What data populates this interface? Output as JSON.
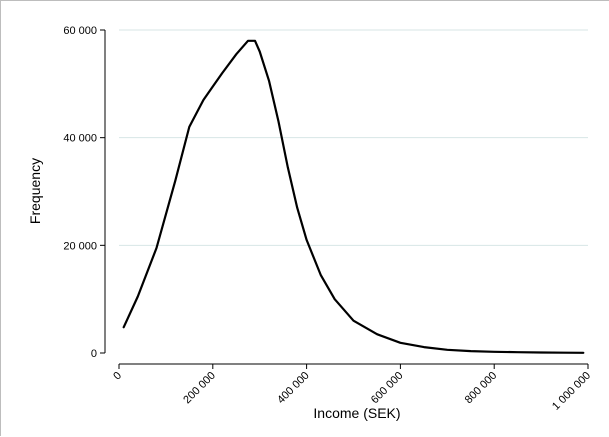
{
  "chart_data": {
    "type": "line",
    "title": "",
    "xlabel": "Income (SEK)",
    "ylabel": "Frequency",
    "xlim": [
      0,
      1000000
    ],
    "ylim": [
      0,
      60000
    ],
    "x_ticks": [
      {
        "value": 0,
        "label": "0"
      },
      {
        "value": 200000,
        "label": "200 000"
      },
      {
        "value": 400000,
        "label": "400 000"
      },
      {
        "value": 600000,
        "label": "600 000"
      },
      {
        "value": 800000,
        "label": "800 000"
      },
      {
        "value": 1000000,
        "label": "1 000 000"
      }
    ],
    "y_ticks": [
      {
        "value": 0,
        "label": "0"
      },
      {
        "value": 20000,
        "label": "20 000"
      },
      {
        "value": 40000,
        "label": "40 000"
      },
      {
        "value": 60000,
        "label": "60 000"
      }
    ],
    "grid": true,
    "colors": {
      "line": "#000000",
      "grid": "#d7e6e6",
      "axis": "#000000"
    },
    "series": [
      {
        "x": [
          10000,
          40000,
          80000,
          120000,
          150000,
          180000,
          200000,
          220000,
          250000,
          275000,
          290000,
          300000,
          320000,
          340000,
          360000,
          380000,
          400000,
          430000,
          460000,
          500000,
          550000,
          600000,
          650000,
          700000,
          750000,
          800000,
          850000,
          900000,
          950000,
          990000
        ],
        "values": [
          4800,
          10500,
          19500,
          32000,
          42000,
          47000,
          49500,
          52000,
          55500,
          58000,
          58000,
          56000,
          50500,
          43000,
          34500,
          27000,
          21000,
          14500,
          10000,
          6000,
          3500,
          1900,
          1100,
          600,
          350,
          220,
          140,
          90,
          50,
          30
        ]
      }
    ]
  }
}
